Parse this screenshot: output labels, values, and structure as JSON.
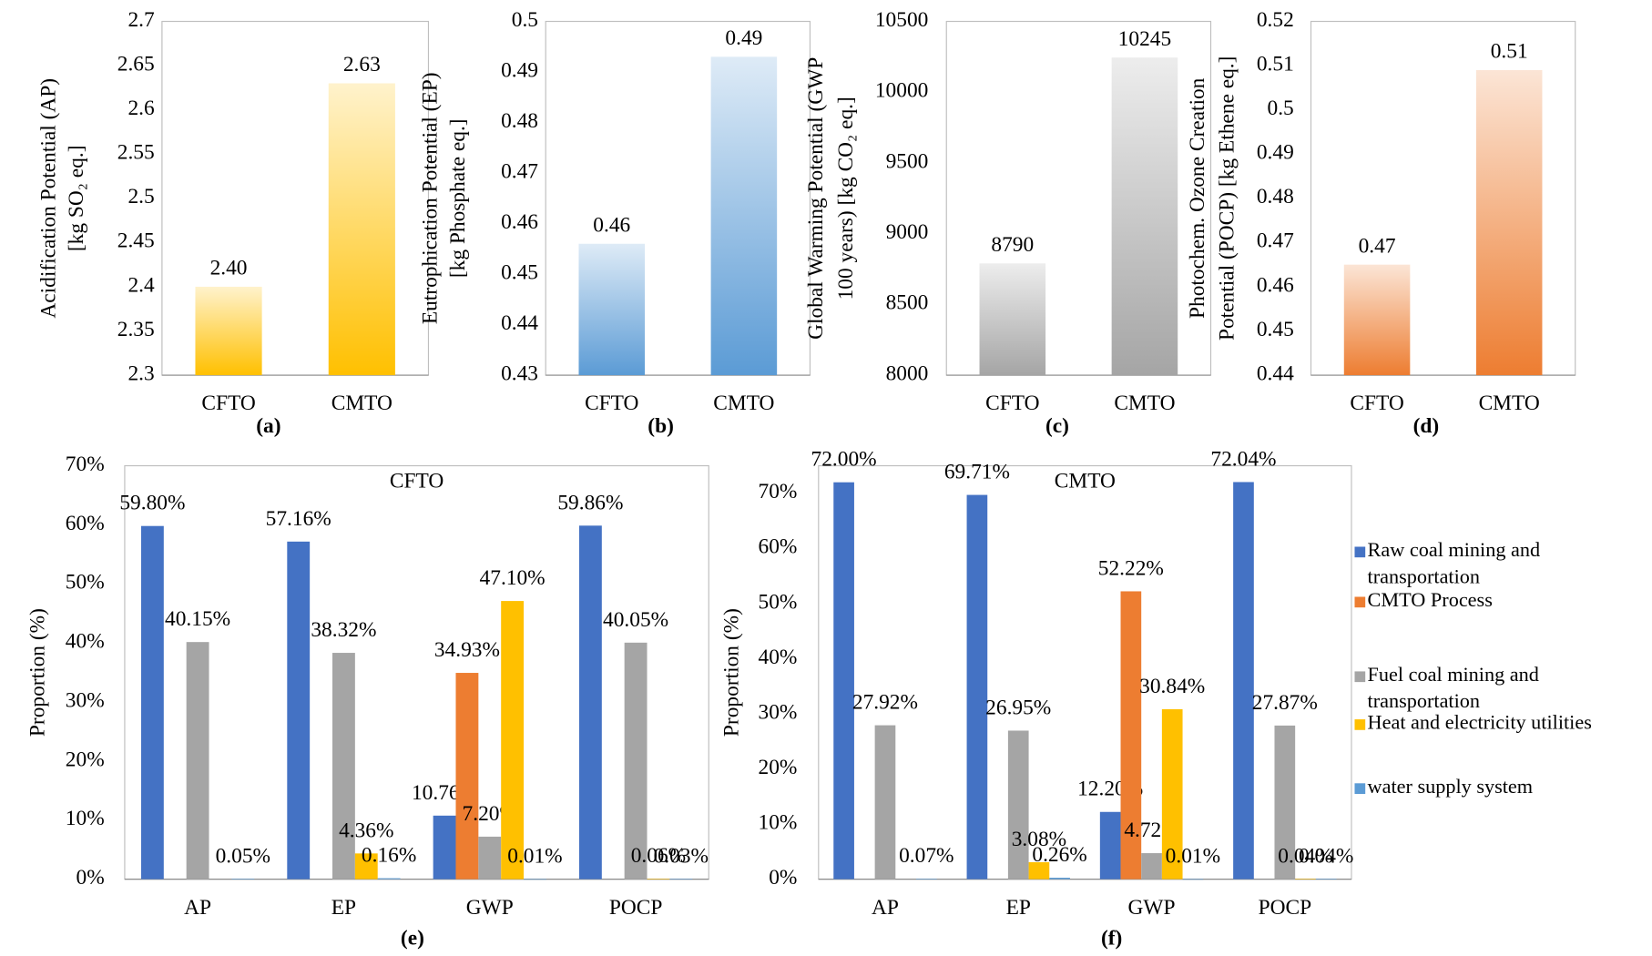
{
  "chart_data": [
    {
      "type": "bar",
      "caption": "(a)",
      "ylabel": [
        "Acidification Potential (AP)",
        "[kg SO₂ eq.]"
      ],
      "categories": [
        "CFTO",
        "CMTO"
      ],
      "values": [
        2.4,
        2.63
      ],
      "value_labels": [
        "2.40",
        "2.63"
      ],
      "color": "#ffc000",
      "ylim": [
        2.3,
        2.7
      ],
      "yticks": [
        2.3,
        2.35,
        2.4,
        2.45,
        2.5,
        2.55,
        2.6,
        2.65,
        2.7
      ]
    },
    {
      "type": "bar",
      "caption": "(b)",
      "ylabel": [
        "Eutrophication Potential (EP)",
        "[kg Phosphate eq.]"
      ],
      "categories": [
        "CFTO",
        "CMTO"
      ],
      "values": [
        0.456,
        0.493
      ],
      "value_labels": [
        "0.46",
        "0.49"
      ],
      "color": "#5b9bd5",
      "ylim": [
        0.43,
        0.5
      ],
      "yticks": [
        0.43,
        0.44,
        0.45,
        0.46,
        0.47,
        0.48,
        0.49,
        0.5
      ]
    },
    {
      "type": "bar",
      "caption": "(c)",
      "ylabel": [
        "Global Warming Potential (GWP",
        "100 years) [kg CO₂ eq.]"
      ],
      "categories": [
        "CFTO",
        "CMTO"
      ],
      "values": [
        8790,
        10245
      ],
      "color": "#a5a5a5",
      "ylim": [
        8000,
        10500
      ],
      "yticks": [
        8000,
        8500,
        9000,
        9500,
        10000,
        10500
      ]
    },
    {
      "type": "bar",
      "caption": "(d)",
      "ylabel": [
        "Photochem. Ozone Creation",
        "Potential (POCP) [kg Ethene eq.]"
      ],
      "categories": [
        "CFTO",
        "CMTO"
      ],
      "values": [
        0.465,
        0.509
      ],
      "value_labels": [
        "0.47",
        "0.51"
      ],
      "color": "#ed7d31",
      "ylim": [
        0.44,
        0.52
      ],
      "yticks": [
        0.44,
        0.45,
        0.46,
        0.47,
        0.48,
        0.49,
        0.5,
        0.51,
        0.52
      ]
    },
    {
      "type": "grouped-bar",
      "caption": "(e)",
      "title": "CFTO",
      "ylabel": "Proportion (%)",
      "categories": [
        "AP",
        "EP",
        "GWP",
        "POCP"
      ],
      "series": [
        {
          "color": "#4472c4",
          "values": [
            59.8,
            57.16,
            10.76,
            59.86
          ],
          "value_labels": [
            "59.80%",
            "57.16%",
            "10.76%",
            "59.86%"
          ]
        },
        {
          "color": "#ed7d31",
          "values": [
            null,
            null,
            34.93,
            null
          ],
          "value_labels": [
            null,
            null,
            "34.93%",
            null
          ]
        },
        {
          "color": "#a5a5a5",
          "values": [
            40.15,
            38.32,
            7.2,
            40.05
          ],
          "value_labels": [
            "40.15%",
            "38.32%",
            "7.20%",
            "40.05%"
          ]
        },
        {
          "color": "#ffc000",
          "values": [
            null,
            4.36,
            47.1,
            0.06
          ],
          "value_labels": [
            null,
            "4.36%",
            "47.10%",
            "0.06%"
          ]
        },
        {
          "color": "#5b9bd5",
          "values": [
            0.05,
            0.16,
            0.01,
            0.03
          ],
          "value_labels": [
            "0.05%",
            "0.16%",
            "0.01%",
            "0.03%"
          ]
        }
      ],
      "ylim": [
        0,
        70
      ],
      "yticks": [
        {
          "value": 0,
          "label": "0%"
        },
        {
          "value": 10,
          "label": "10%"
        },
        {
          "value": 20,
          "label": "20%"
        },
        {
          "value": 30,
          "label": "30%"
        },
        {
          "value": 40,
          "label": "40%"
        },
        {
          "value": 50,
          "label": "50%"
        },
        {
          "value": 60,
          "label": "60%"
        },
        {
          "value": 70,
          "label": "70%"
        }
      ]
    },
    {
      "type": "grouped-bar",
      "caption": "(f)",
      "title": "CMTO",
      "ylabel": "Proportion (%)",
      "categories": [
        "AP",
        "EP",
        "GWP",
        "POCP"
      ],
      "series": [
        {
          "name": "Raw coal mining and transportation",
          "color": "#4472c4",
          "values": [
            72.0,
            69.71,
            12.2,
            72.04
          ],
          "value_labels": [
            "72.00%",
            "69.71%",
            "12.20%",
            "72.04%"
          ]
        },
        {
          "name": "CMTO Process",
          "color": "#ed7d31",
          "values": [
            null,
            null,
            52.22,
            null
          ],
          "value_labels": [
            null,
            null,
            "52.22%",
            null
          ]
        },
        {
          "name": "Fuel coal mining and transportation",
          "color": "#a5a5a5",
          "values": [
            27.92,
            26.95,
            4.72,
            27.87
          ],
          "value_labels": [
            "27.92%",
            "26.95%",
            "4.72%",
            "27.87%"
          ]
        },
        {
          "name": "Heat and electricity utilities",
          "color": "#ffc000",
          "values": [
            null,
            3.08,
            30.84,
            0.04
          ],
          "value_labels": [
            null,
            "3.08%",
            "30.84%",
            "0.04%"
          ]
        },
        {
          "name": "water supply system",
          "color": "#5b9bd5",
          "values": [
            0.07,
            0.26,
            0.01,
            0.04
          ],
          "value_labels": [
            "0.07%",
            "0.26%",
            "0.01%",
            "0.04%"
          ]
        }
      ],
      "ylim": [
        0,
        75
      ],
      "yticks": [
        {
          "value": 0,
          "label": "0%"
        },
        {
          "value": 10,
          "label": "10%"
        },
        {
          "value": 20,
          "label": "20%"
        },
        {
          "value": 30,
          "label": "30%"
        },
        {
          "value": 40,
          "label": "40%"
        },
        {
          "value": 50,
          "label": "50%"
        },
        {
          "value": 60,
          "label": "60%"
        },
        {
          "value": 70,
          "label": "70%"
        }
      ]
    }
  ]
}
